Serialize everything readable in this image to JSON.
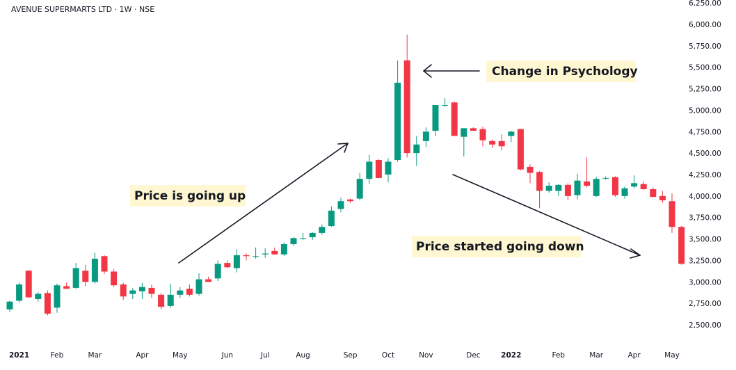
{
  "chart_data": {
    "type": "candlestick",
    "title": "AVENUE SUPERMARTS LTD · 1W · NSE",
    "ylim": [
      2400,
      6250
    ],
    "y_ticks": [
      2500,
      2750,
      3000,
      3250,
      3500,
      3750,
      4000,
      4250,
      4500,
      4750,
      5000,
      5250,
      5500,
      5750,
      6000,
      6250
    ],
    "y_tick_labels": [
      "2,500.00",
      "2,750.00",
      "3,000.00",
      "3,250.00",
      "3,500.00",
      "3,750.00",
      "4,000.00",
      "4,250.00",
      "4,500.00",
      "4,750.00",
      "5,000.00",
      "5,250.00",
      "5,500.00",
      "5,750.00",
      "6,000.00",
      "6,250.00"
    ],
    "x_labels": [
      {
        "label": "2021",
        "bar": 0,
        "bold": true
      },
      {
        "label": "Feb",
        "bar": 5,
        "bold": false
      },
      {
        "label": "Mar",
        "bar": 9,
        "bold": false
      },
      {
        "label": "Apr",
        "bar": 14,
        "bold": false
      },
      {
        "label": "May",
        "bar": 18,
        "bold": false
      },
      {
        "label": "Jun",
        "bar": 23,
        "bold": false
      },
      {
        "label": "Jul",
        "bar": 27,
        "bold": false
      },
      {
        "label": "Aug",
        "bar": 31,
        "bold": false
      },
      {
        "label": "Sep",
        "bar": 36,
        "bold": false
      },
      {
        "label": "Oct",
        "bar": 40,
        "bold": false
      },
      {
        "label": "Nov",
        "bar": 44,
        "bold": false
      },
      {
        "label": "Dec",
        "bar": 49,
        "bold": false
      },
      {
        "label": "2022",
        "bar": 53,
        "bold": true
      },
      {
        "label": "Feb",
        "bar": 58,
        "bold": false
      },
      {
        "label": "Mar",
        "bar": 62,
        "bold": false
      },
      {
        "label": "Apr",
        "bar": 66,
        "bold": false
      },
      {
        "label": "May",
        "bar": 70,
        "bold": false
      }
    ],
    "candles": [
      {
        "o": 2680,
        "h": 2780,
        "l": 2650,
        "c": 2770
      },
      {
        "o": 2780,
        "h": 2990,
        "l": 2760,
        "c": 2970
      },
      {
        "o": 3130,
        "h": 3140,
        "l": 2810,
        "c": 2820
      },
      {
        "o": 2800,
        "h": 2880,
        "l": 2770,
        "c": 2860
      },
      {
        "o": 2870,
        "h": 2900,
        "l": 2610,
        "c": 2630
      },
      {
        "o": 2700,
        "h": 2980,
        "l": 2640,
        "c": 2960
      },
      {
        "o": 2950,
        "h": 2990,
        "l": 2930,
        "c": 2920
      },
      {
        "o": 2930,
        "h": 3220,
        "l": 2920,
        "c": 3160
      },
      {
        "o": 3130,
        "h": 3200,
        "l": 2950,
        "c": 3000
      },
      {
        "o": 3000,
        "h": 3340,
        "l": 2980,
        "c": 3270
      },
      {
        "o": 3300,
        "h": 3310,
        "l": 3090,
        "c": 3120
      },
      {
        "o": 3120,
        "h": 3150,
        "l": 2940,
        "c": 2960
      },
      {
        "o": 2970,
        "h": 2990,
        "l": 2790,
        "c": 2830
      },
      {
        "o": 2860,
        "h": 2930,
        "l": 2800,
        "c": 2900
      },
      {
        "o": 2890,
        "h": 2990,
        "l": 2800,
        "c": 2940
      },
      {
        "o": 2930,
        "h": 2970,
        "l": 2810,
        "c": 2860
      },
      {
        "o": 2850,
        "h": 2870,
        "l": 2680,
        "c": 2710
      },
      {
        "o": 2720,
        "h": 2980,
        "l": 2700,
        "c": 2850
      },
      {
        "o": 2850,
        "h": 2940,
        "l": 2810,
        "c": 2900
      },
      {
        "o": 2920,
        "h": 2970,
        "l": 2830,
        "c": 2850
      },
      {
        "o": 2860,
        "h": 3100,
        "l": 2840,
        "c": 3030
      },
      {
        "o": 3030,
        "h": 3060,
        "l": 3000,
        "c": 3000
      },
      {
        "o": 3040,
        "h": 3250,
        "l": 3010,
        "c": 3210
      },
      {
        "o": 3220,
        "h": 3250,
        "l": 3160,
        "c": 3170
      },
      {
        "o": 3160,
        "h": 3380,
        "l": 3110,
        "c": 3310
      },
      {
        "o": 3310,
        "h": 3330,
        "l": 3250,
        "c": 3300
      },
      {
        "o": 3300,
        "h": 3400,
        "l": 3270,
        "c": 3300
      },
      {
        "o": 3320,
        "h": 3390,
        "l": 3280,
        "c": 3330
      },
      {
        "o": 3360,
        "h": 3400,
        "l": 3320,
        "c": 3320
      },
      {
        "o": 3320,
        "h": 3460,
        "l": 3300,
        "c": 3440
      },
      {
        "o": 3440,
        "h": 3520,
        "l": 3420,
        "c": 3510
      },
      {
        "o": 3510,
        "h": 3570,
        "l": 3490,
        "c": 3510
      },
      {
        "o": 3520,
        "h": 3580,
        "l": 3490,
        "c": 3570
      },
      {
        "o": 3570,
        "h": 3670,
        "l": 3550,
        "c": 3640
      },
      {
        "o": 3650,
        "h": 3880,
        "l": 3640,
        "c": 3830
      },
      {
        "o": 3850,
        "h": 3980,
        "l": 3810,
        "c": 3940
      },
      {
        "o": 3960,
        "h": 3970,
        "l": 3920,
        "c": 3940
      },
      {
        "o": 3970,
        "h": 4270,
        "l": 3950,
        "c": 4200
      },
      {
        "o": 4200,
        "h": 4480,
        "l": 4140,
        "c": 4400
      },
      {
        "o": 4420,
        "h": 4430,
        "l": 4230,
        "c": 4210
      },
      {
        "o": 4250,
        "h": 4440,
        "l": 4160,
        "c": 4400
      },
      {
        "o": 4420,
        "h": 5580,
        "l": 4400,
        "c": 5320
      },
      {
        "o": 5580,
        "h": 5880,
        "l": 4450,
        "c": 4500
      },
      {
        "o": 4500,
        "h": 4700,
        "l": 4350,
        "c": 4600
      },
      {
        "o": 4640,
        "h": 4800,
        "l": 4570,
        "c": 4750
      },
      {
        "o": 4760,
        "h": 5060,
        "l": 4700,
        "c": 5060
      },
      {
        "o": 5060,
        "h": 5140,
        "l": 5040,
        "c": 5060
      },
      {
        "o": 5090,
        "h": 5100,
        "l": 4700,
        "c": 4700
      },
      {
        "o": 4690,
        "h": 4790,
        "l": 4460,
        "c": 4790
      },
      {
        "o": 4790,
        "h": 4800,
        "l": 4760,
        "c": 4760
      },
      {
        "o": 4780,
        "h": 4810,
        "l": 4580,
        "c": 4650
      },
      {
        "o": 4640,
        "h": 4660,
        "l": 4560,
        "c": 4600
      },
      {
        "o": 4640,
        "h": 4720,
        "l": 4530,
        "c": 4580
      },
      {
        "o": 4700,
        "h": 4760,
        "l": 4630,
        "c": 4750
      },
      {
        "o": 4780,
        "h": 4780,
        "l": 4300,
        "c": 4310
      },
      {
        "o": 4340,
        "h": 4370,
        "l": 4150,
        "c": 4270
      },
      {
        "o": 4280,
        "h": 4290,
        "l": 3860,
        "c": 4060
      },
      {
        "o": 4060,
        "h": 4160,
        "l": 4040,
        "c": 4120
      },
      {
        "o": 4060,
        "h": 4140,
        "l": 4000,
        "c": 4130
      },
      {
        "o": 4130,
        "h": 4150,
        "l": 3950,
        "c": 4000
      },
      {
        "o": 4010,
        "h": 4260,
        "l": 3960,
        "c": 4180
      },
      {
        "o": 4170,
        "h": 4450,
        "l": 4100,
        "c": 4120
      },
      {
        "o": 4000,
        "h": 4220,
        "l": 3990,
        "c": 4200
      },
      {
        "o": 4210,
        "h": 4230,
        "l": 4190,
        "c": 4210
      },
      {
        "o": 4220,
        "h": 4230,
        "l": 3990,
        "c": 4010
      },
      {
        "o": 4000,
        "h": 4110,
        "l": 3970,
        "c": 4090
      },
      {
        "o": 4110,
        "h": 4240,
        "l": 4090,
        "c": 4150
      },
      {
        "o": 4140,
        "h": 4170,
        "l": 4070,
        "c": 4080
      },
      {
        "o": 4080,
        "h": 4100,
        "l": 3990,
        "c": 3990
      },
      {
        "o": 4000,
        "h": 4060,
        "l": 3920,
        "c": 3950
      },
      {
        "o": 3940,
        "h": 4030,
        "l": 3570,
        "c": 3640
      },
      {
        "o": 3640,
        "h": 3650,
        "l": 3200,
        "c": 3210
      }
    ],
    "annotations": [
      {
        "text": "Change in Psychology"
      },
      {
        "text": "Price is going up"
      },
      {
        "text": "Price started going down"
      }
    ],
    "colors": {
      "up": "#089981",
      "down": "#f23645",
      "note_bg": "#fff7d1",
      "text": "#131722"
    }
  }
}
